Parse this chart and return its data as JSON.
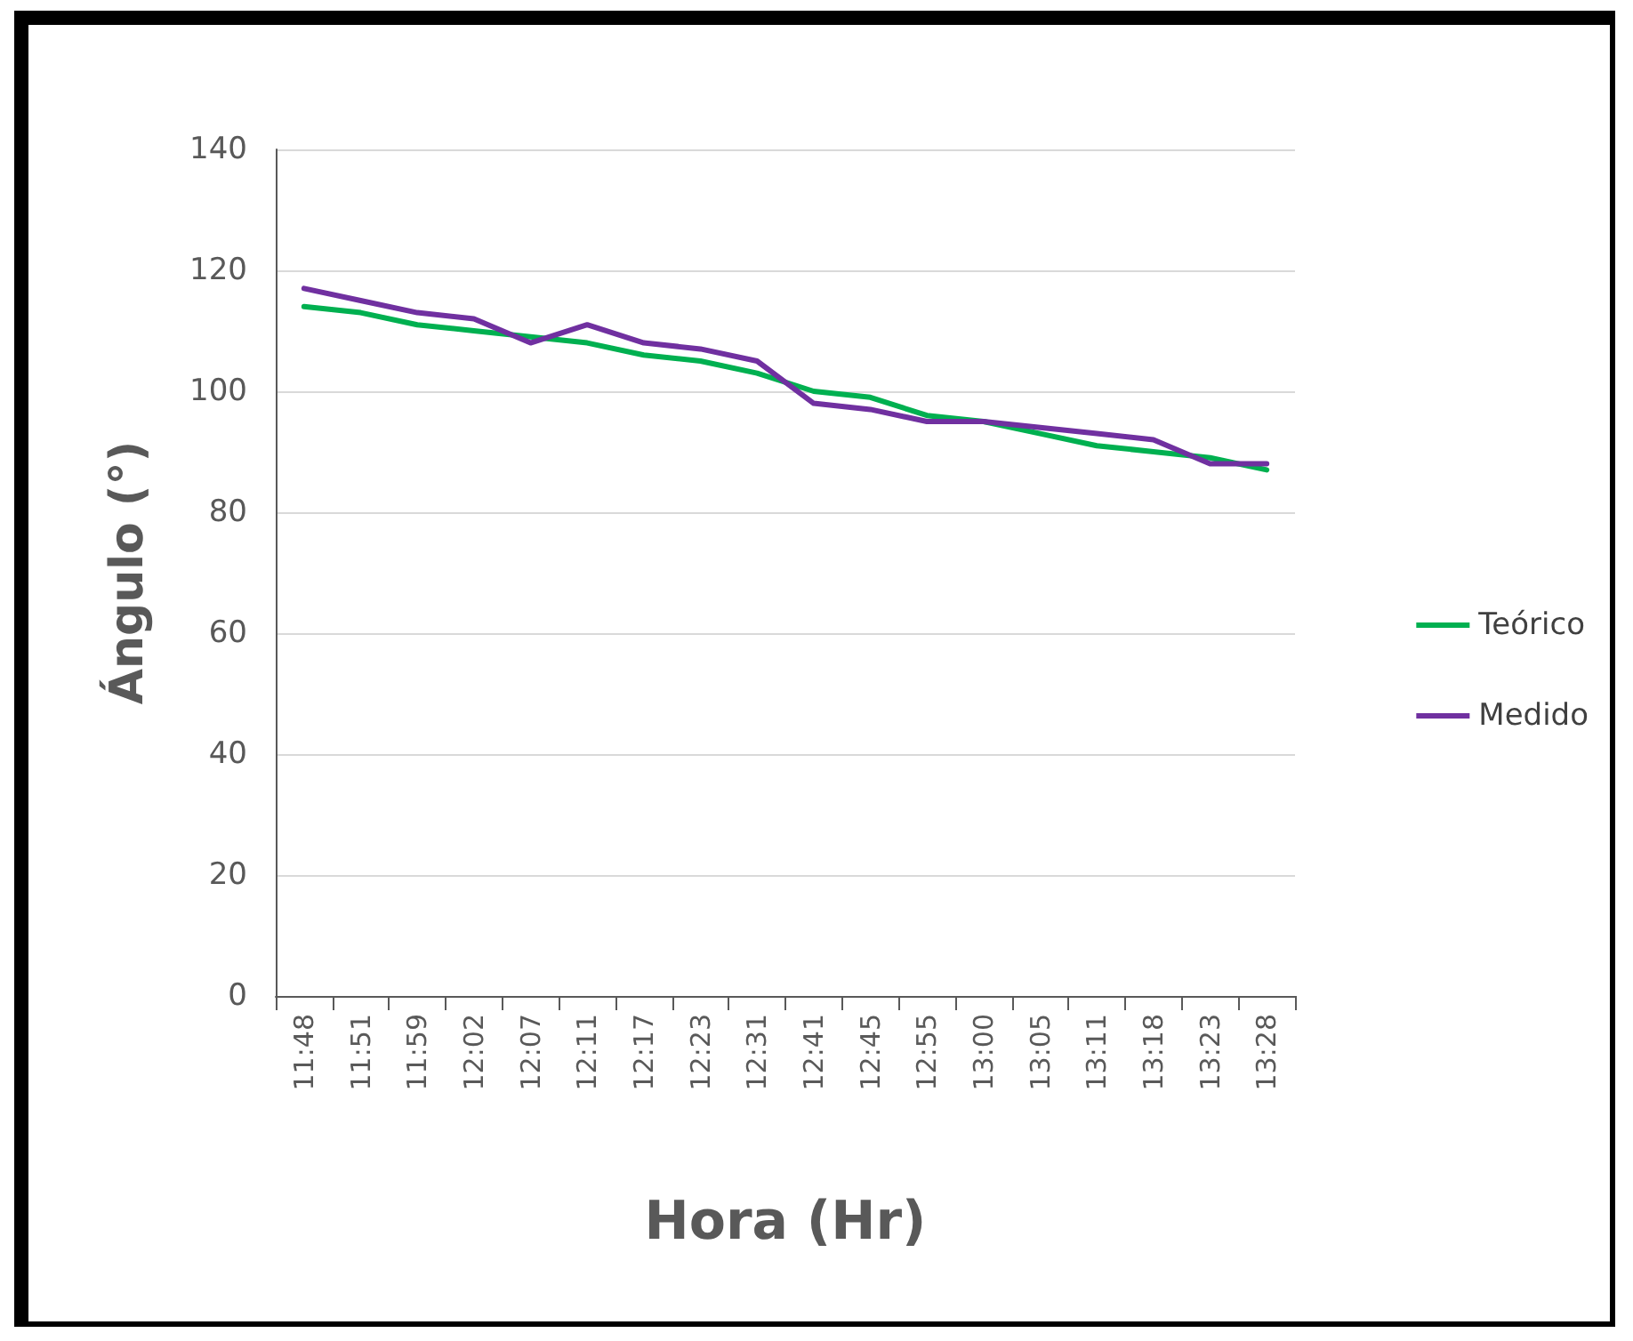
{
  "chart_data": {
    "type": "line",
    "xlabel": "Hora (Hr)",
    "ylabel": "Ángulo (°)",
    "categories": [
      "11:48",
      "11:51",
      "11:59",
      "12:02",
      "12:07",
      "12:11",
      "12:17",
      "12:23",
      "12:31",
      "12:41",
      "12:45",
      "12:55",
      "13:00",
      "13:05",
      "13:11",
      "13:18",
      "13:23",
      "13:28"
    ],
    "series": [
      {
        "name": "Teórico",
        "color": "#00b050",
        "values": [
          114,
          113,
          111,
          110,
          109,
          108,
          106,
          105,
          103,
          100,
          99,
          96,
          95,
          93,
          91,
          90,
          89,
          87
        ]
      },
      {
        "name": "Medido",
        "color": "#7030a0",
        "values": [
          117,
          115,
          113,
          112,
          108,
          111,
          108,
          107,
          105,
          98,
          97,
          95,
          95,
          94,
          93,
          92,
          88,
          88
        ]
      }
    ],
    "ylim": [
      0,
      140
    ],
    "yticks": [
      0,
      20,
      40,
      60,
      80,
      100,
      120,
      140
    ],
    "grid": "y",
    "legend": "right",
    "marker": "none",
    "line_style": "solid"
  }
}
